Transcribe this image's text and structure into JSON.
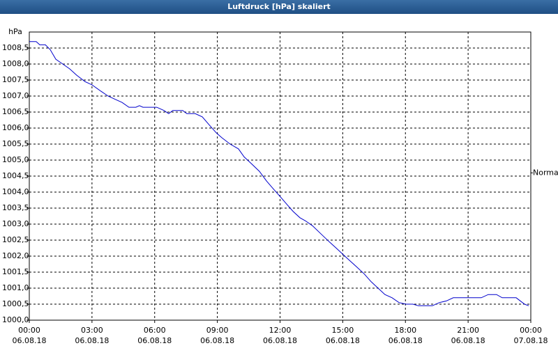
{
  "chart_data": {
    "type": "line",
    "title": "Luftdruck [hPa] skaliert",
    "y_unit": "hPa",
    "x": [
      0,
      0.33,
      0.5,
      0.77,
      1.0,
      1.27,
      1.6,
      1.93,
      2.27,
      2.67,
      3.0,
      3.43,
      3.77,
      4.1,
      4.44,
      4.77,
      5.1,
      5.27,
      5.44,
      6.1,
      6.44,
      6.67,
      6.87,
      7.34,
      7.54,
      7.94,
      8.28,
      8.61,
      8.95,
      9.21,
      9.61,
      10.01,
      10.28,
      10.61,
      11.01,
      11.35,
      11.68,
      12.02,
      12.35,
      12.62,
      12.95,
      13.22,
      13.55,
      13.95,
      14.35,
      14.69,
      15.02,
      15.35,
      15.69,
      16.02,
      16.36,
      16.69,
      17.02,
      17.36,
      17.69,
      18.02,
      18.36,
      18.62,
      19.29,
      19.63,
      19.96,
      20.29,
      20.96,
      21.63,
      21.96,
      22.36,
      22.63,
      23.3,
      23.7,
      23.9
    ],
    "series": [
      {
        "name": "Luftdruck",
        "color": "#0000cc",
        "values": [
          1008.7,
          1008.7,
          1008.6,
          1008.6,
          1008.45,
          1008.15,
          1008.0,
          1007.85,
          1007.65,
          1007.45,
          1007.35,
          1007.15,
          1007.0,
          1006.9,
          1006.8,
          1006.65,
          1006.65,
          1006.7,
          1006.65,
          1006.65,
          1006.55,
          1006.45,
          1006.55,
          1006.55,
          1006.45,
          1006.45,
          1006.35,
          1006.1,
          1005.85,
          1005.7,
          1005.5,
          1005.35,
          1005.1,
          1004.9,
          1004.65,
          1004.35,
          1004.1,
          1003.85,
          1003.6,
          1003.4,
          1003.2,
          1003.1,
          1002.95,
          1002.7,
          1002.45,
          1002.25,
          1002.05,
          1001.85,
          1001.65,
          1001.45,
          1001.2,
          1001.0,
          1000.8,
          1000.7,
          1000.55,
          1000.5,
          1000.5,
          1000.45,
          1000.45,
          1000.55,
          1000.6,
          1000.7,
          1000.7,
          1000.7,
          1000.8,
          1000.8,
          1000.7,
          1000.7,
          1000.5,
          1000.45
        ]
      }
    ],
    "xlim": [
      0,
      24
    ],
    "xticks": [
      {
        "value": 0,
        "label": "00:00",
        "date": "06.08.18"
      },
      {
        "value": 3,
        "label": "03:00",
        "date": "06.08.18"
      },
      {
        "value": 6,
        "label": "06:00",
        "date": "06.08.18"
      },
      {
        "value": 9,
        "label": "09:00",
        "date": "06.08.18"
      },
      {
        "value": 12,
        "label": "12:00",
        "date": "06.08.18"
      },
      {
        "value": 15,
        "label": "15:00",
        "date": "06.08.18"
      },
      {
        "value": 18,
        "label": "18:00",
        "date": "06.08.18"
      },
      {
        "value": 21,
        "label": "21:00",
        "date": "06.08.18"
      },
      {
        "value": 24,
        "label": "00:00",
        "date": "07.08.18"
      }
    ],
    "ylim": [
      1000,
      1009
    ],
    "yticks": [
      {
        "value": 1000,
        "label": "1000,0"
      },
      {
        "value": 1000.5,
        "label": "1000,5"
      },
      {
        "value": 1001,
        "label": "1001,0"
      },
      {
        "value": 1001.5,
        "label": "1001,5"
      },
      {
        "value": 1002,
        "label": "1002,0"
      },
      {
        "value": 1002.5,
        "label": "1002,5"
      },
      {
        "value": 1003,
        "label": "1003,0"
      },
      {
        "value": 1003.5,
        "label": "1003,5"
      },
      {
        "value": 1004,
        "label": "1004,0"
      },
      {
        "value": 1004.5,
        "label": "1004,5"
      },
      {
        "value": 1005,
        "label": "1005,0"
      },
      {
        "value": 1005.5,
        "label": "1005,5"
      },
      {
        "value": 1006,
        "label": "1006,0"
      },
      {
        "value": 1006.5,
        "label": "1006,5"
      },
      {
        "value": 1007,
        "label": "1007,0"
      },
      {
        "value": 1007.5,
        "label": "1007,5"
      },
      {
        "value": 1008,
        "label": "1008,0"
      },
      {
        "value": 1008.5,
        "label": "1008,5"
      }
    ],
    "annotation": {
      "label": "Normal",
      "value": 1004.6
    },
    "grid": true
  }
}
